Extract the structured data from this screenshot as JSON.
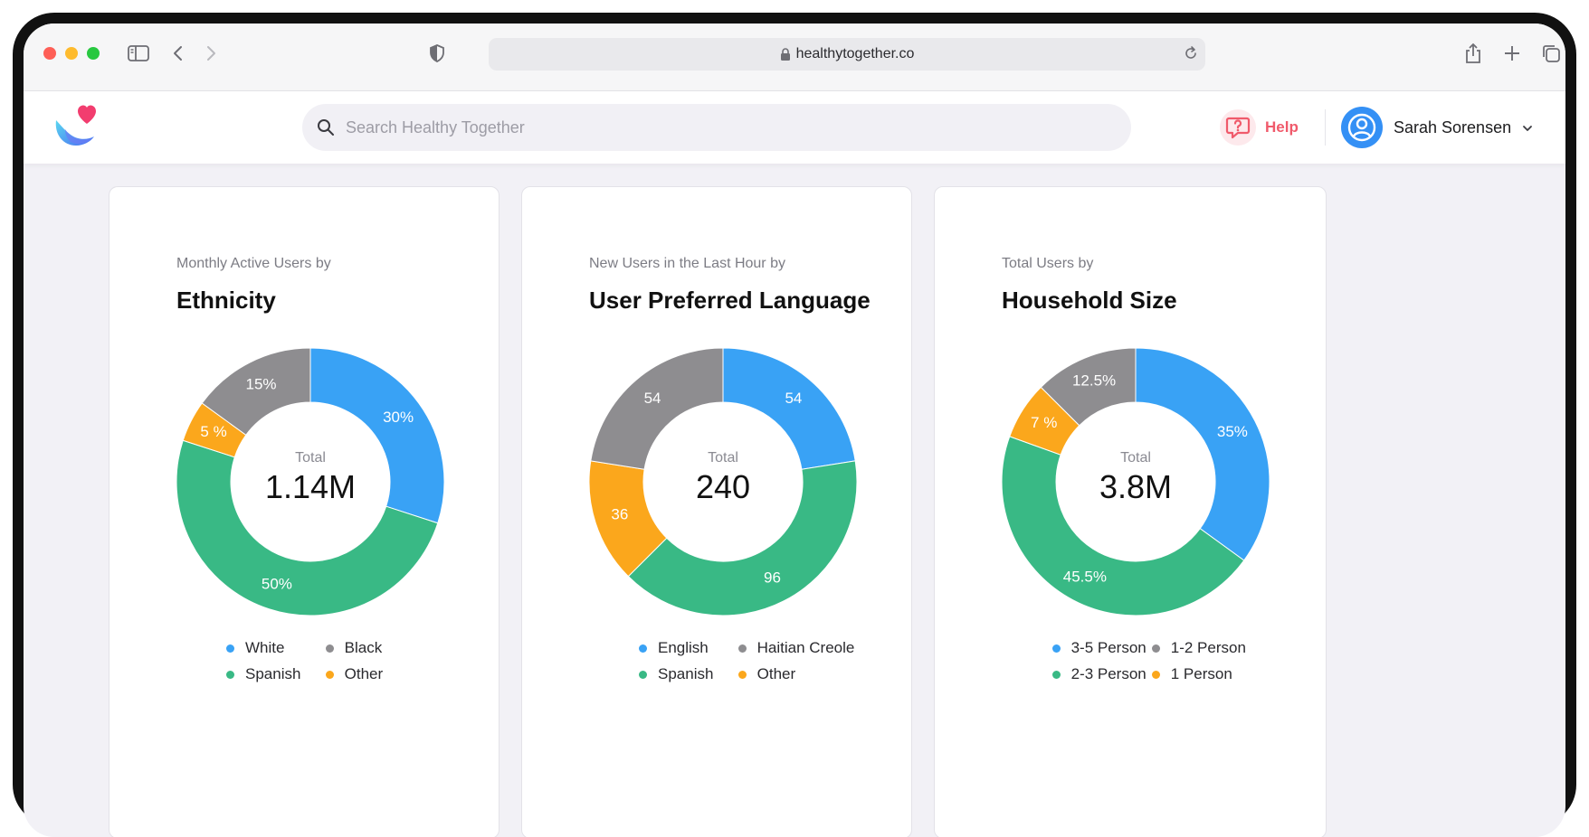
{
  "browser": {
    "url": "healthytogether.co"
  },
  "header": {
    "search_placeholder": "Search Healthy Together",
    "help_label": "Help",
    "user_name": "Sarah Sorensen"
  },
  "colors": {
    "blue": "#39a2f5",
    "green": "#39b985",
    "gray": "#8e8d90",
    "orange": "#fba71c"
  },
  "chart_data": [
    {
      "type": "pie",
      "subtitle": "Monthly Active Users by",
      "title": "Ethnicity",
      "total_label": "Total",
      "total_value": "1.14M",
      "slices": [
        {
          "name": "White",
          "value": 30,
          "label": "30%",
          "color": "#39a2f5"
        },
        {
          "name": "Spanish",
          "value": 50,
          "label": "50%",
          "color": "#39b985"
        },
        {
          "name": "Other",
          "value": 5,
          "label": "5 %",
          "color": "#fba71c"
        },
        {
          "name": "Black",
          "value": 15,
          "label": "15%",
          "color": "#8e8d90"
        }
      ],
      "legend": [
        {
          "name": "White",
          "color": "#39a2f5"
        },
        {
          "name": "Black",
          "color": "#8e8d90"
        },
        {
          "name": "Spanish",
          "color": "#39b985"
        },
        {
          "name": "Other",
          "color": "#fba71c"
        }
      ]
    },
    {
      "type": "pie",
      "subtitle": "New Users in the Last Hour by",
      "title": "User Preferred Language",
      "total_label": "Total",
      "total_value": "240",
      "slices": [
        {
          "name": "English",
          "value": 54,
          "label": "54",
          "color": "#39a2f5"
        },
        {
          "name": "Spanish",
          "value": 96,
          "label": "96",
          "color": "#39b985"
        },
        {
          "name": "Other",
          "value": 36,
          "label": "36",
          "color": "#fba71c"
        },
        {
          "name": "Haitian Creole",
          "value": 54,
          "label": "54",
          "color": "#8e8d90"
        }
      ],
      "legend": [
        {
          "name": "English",
          "color": "#39a2f5"
        },
        {
          "name": "Haitian Creole",
          "color": "#8e8d90"
        },
        {
          "name": "Spanish",
          "color": "#39b985"
        },
        {
          "name": "Other",
          "color": "#fba71c"
        }
      ]
    },
    {
      "type": "pie",
      "subtitle": "Total Users by",
      "title": "Household Size",
      "total_label": "Total",
      "total_value": "3.8M",
      "slices": [
        {
          "name": "3-5 Person",
          "value": 35,
          "label": "35%",
          "color": "#39a2f5"
        },
        {
          "name": "2-3 Person",
          "value": 45.5,
          "label": "45.5%",
          "color": "#39b985"
        },
        {
          "name": "1 Person",
          "value": 7,
          "label": "7 %",
          "color": "#fba71c"
        },
        {
          "name": "1-2 Person",
          "value": 12.5,
          "label": "12.5%",
          "color": "#8e8d90"
        }
      ],
      "legend": [
        {
          "name": "3-5 Person",
          "color": "#39a2f5"
        },
        {
          "name": "1-2 Person",
          "color": "#8e8d90"
        },
        {
          "name": "2-3 Person",
          "color": "#39b985"
        },
        {
          "name": "1 Person",
          "color": "#fba71c"
        }
      ]
    }
  ]
}
